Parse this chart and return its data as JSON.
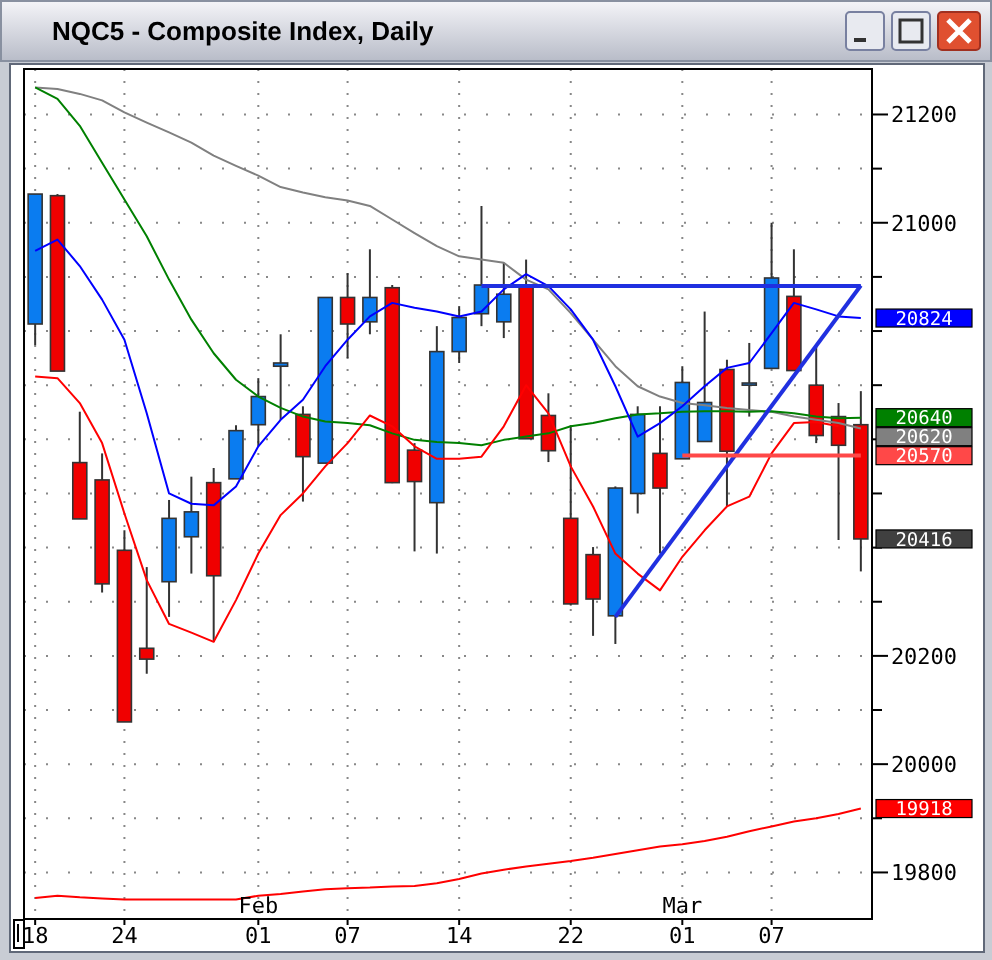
{
  "chart_data": {
    "type": "candlestick",
    "title": "NQC5 - Composite Index, Daily",
    "categories": [
      "18",
      null,
      null,
      null,
      "24",
      null,
      null,
      null,
      null,
      null,
      "Feb\n01",
      null,
      null,
      null,
      "07",
      null,
      null,
      null,
      null,
      "14",
      null,
      null,
      null,
      null,
      "22",
      null,
      null,
      null,
      null,
      "Mar\n01",
      null,
      null,
      null,
      "07",
      null,
      null,
      null,
      null
    ],
    "ylim": [
      19714,
      21284
    ],
    "yticks": [
      19800,
      {
        "value": 19900,
        "label": null
      },
      20000,
      {
        "value": 20100,
        "label": null
      },
      20200,
      {
        "value": 20300,
        "label": null
      },
      {
        "value": 20400,
        "label": null
      },
      {
        "value": 20500,
        "label": null
      },
      {
        "value": 20600,
        "label": null
      },
      {
        "value": 20700,
        "label": null
      },
      {
        "value": 20800,
        "label": null
      },
      {
        "value": 20900,
        "label": null
      },
      21000,
      {
        "value": 21100,
        "label": null
      },
      21200
    ],
    "grid": true,
    "ohlc": [
      [
        20813,
        21053,
        20774,
        21053
      ],
      [
        21050,
        21053,
        20726,
        20726
      ],
      [
        20557,
        20651,
        20453,
        20453
      ],
      [
        20525,
        20574,
        20317,
        20333
      ],
      [
        20395,
        20432,
        20078,
        20078
      ],
      [
        20214,
        20364,
        20167,
        20194
      ],
      [
        20337,
        20488,
        20272,
        20454
      ],
      [
        20420,
        20531,
        20352,
        20466
      ],
      [
        20520,
        20547,
        20226,
        20348
      ],
      [
        20527,
        20626,
        20527,
        20616
      ],
      [
        20627,
        20713,
        20587,
        20679
      ],
      [
        20735,
        20794,
        20636,
        20741
      ],
      [
        20646,
        20661,
        20485,
        20568
      ],
      [
        20556,
        20862,
        20556,
        20862
      ],
      [
        20862,
        20907,
        20750,
        20813
      ],
      [
        20817,
        20951,
        20794,
        20862
      ],
      [
        20880,
        20885,
        20519,
        20520
      ],
      [
        20580,
        20593,
        20393,
        20522
      ],
      [
        20483,
        20809,
        20389,
        20762
      ],
      [
        20762,
        20846,
        20741,
        20825
      ],
      [
        20832,
        21031,
        20809,
        20885
      ],
      [
        20817,
        20926,
        20787,
        20868
      ],
      [
        20883,
        20932,
        20601,
        20601
      ],
      [
        20644,
        20685,
        20558,
        20579
      ],
      [
        20454,
        20626,
        20293,
        20296
      ],
      [
        20387,
        20401,
        20237,
        20305
      ],
      [
        20274,
        20513,
        20222,
        20510
      ],
      [
        20500,
        20661,
        20463,
        20646
      ],
      [
        20574,
        20661,
        20389,
        20510
      ],
      [
        20564,
        20735,
        20564,
        20705
      ],
      [
        20596,
        20836,
        20596,
        20668
      ],
      [
        20729,
        20747,
        20476,
        20578
      ],
      [
        20700,
        20778,
        20642,
        20704
      ],
      [
        20731,
        21000,
        20731,
        20898
      ],
      [
        20864,
        20951,
        20727,
        20727
      ],
      [
        20700,
        20772,
        20593,
        20607
      ],
      [
        20642,
        20667,
        20414,
        20589
      ],
      [
        20627,
        20689,
        20356,
        20416
      ]
    ],
    "colors": [
      "#0a7cf0",
      "#f00000",
      "#f00000",
      "#f00000",
      "#f00000",
      "#f00000",
      "#0a7cf0",
      "#0a7cf0",
      "#f00000",
      "#0a7cf0",
      "#0a7cf0",
      "#0a7cf0",
      "#f00000",
      "#0a7cf0",
      "#f00000",
      "#0a7cf0",
      "#f00000",
      "#f00000",
      "#0a7cf0",
      "#0a7cf0",
      "#0a7cf0",
      "#0a7cf0",
      "#f00000",
      "#f00000",
      "#f00000",
      "#f00000",
      "#0a7cf0",
      "#0a7cf0",
      "#f00000",
      "#0a7cf0",
      "#0a7cf0",
      "#f00000",
      "#0a7cf0",
      "#0a7cf0",
      "#f00000",
      "#f00000",
      "#f00000",
      "#f00000"
    ],
    "color": "#404040",
    "value_labels": [
      null,
      null,
      null,
      null,
      null,
      null,
      null,
      null,
      null,
      null,
      null,
      null,
      null,
      null,
      null,
      null,
      null,
      null,
      null,
      null,
      null,
      null,
      null,
      null,
      null,
      null,
      null,
      null,
      null,
      null,
      null,
      null,
      null,
      null,
      null,
      null,
      null,
      "20416"
    ],
    "series": [
      {
        "type": "line",
        "color": "#808080",
        "values": [
          21250,
          21247,
          21238,
          21226,
          21204,
          21185,
          21167,
          21148,
          21124,
          21105,
          21087,
          21066,
          21056,
          21047,
          21041,
          21031,
          21006,
          20981,
          20957,
          20938,
          20932,
          20926,
          20895,
          20877,
          20833,
          20784,
          20735,
          20698,
          20679,
          20667,
          20663,
          20658,
          20654,
          20651,
          20642,
          20636,
          20630,
          20620
        ],
        "value_labels": [
          null,
          null,
          null,
          null,
          null,
          null,
          null,
          null,
          null,
          null,
          null,
          null,
          null,
          null,
          null,
          null,
          null,
          null,
          null,
          null,
          null,
          null,
          null,
          null,
          null,
          null,
          null,
          null,
          null,
          null,
          null,
          null,
          null,
          null,
          null,
          null,
          null,
          "20620"
        ]
      },
      {
        "type": "line",
        "color": "#008000",
        "values": [
          21250,
          21229,
          21179,
          21111,
          21043,
          20975,
          20895,
          20821,
          20759,
          20710,
          20679,
          20658,
          20642,
          20633,
          20630,
          20626,
          20611,
          20599,
          20595,
          20593,
          20589,
          20599,
          20605,
          20611,
          20624,
          20630,
          20639,
          20646,
          20648,
          20651,
          20652,
          20652,
          20651,
          20652,
          20648,
          20642,
          20639,
          20640
        ],
        "value_labels": [
          null,
          null,
          null,
          null,
          null,
          null,
          null,
          null,
          null,
          null,
          null,
          null,
          null,
          null,
          null,
          null,
          null,
          null,
          null,
          null,
          null,
          null,
          null,
          null,
          null,
          null,
          null,
          null,
          null,
          null,
          null,
          null,
          null,
          null,
          null,
          null,
          null,
          "20640"
        ]
      },
      {
        "type": "line",
        "color": "#0000ff",
        "values": [
          20948,
          20969,
          20920,
          20858,
          20784,
          20648,
          20500,
          20481,
          20478,
          20513,
          20587,
          20636,
          20673,
          20735,
          20784,
          20827,
          20852,
          20843,
          20836,
          20827,
          20836,
          20877,
          20905,
          20883,
          20840,
          20784,
          20698,
          20605,
          20630,
          20661,
          20698,
          20732,
          20741,
          20796,
          20852,
          20840,
          20827,
          20824
        ],
        "value_labels": [
          null,
          null,
          null,
          null,
          null,
          null,
          null,
          null,
          null,
          null,
          null,
          null,
          null,
          null,
          null,
          null,
          null,
          null,
          null,
          null,
          null,
          null,
          null,
          null,
          null,
          null,
          null,
          null,
          null,
          null,
          null,
          null,
          null,
          null,
          null,
          null,
          null,
          "20824"
        ]
      },
      {
        "type": "line",
        "color": "#ff0000",
        "values": [
          20716,
          20713,
          20667,
          20593,
          20463,
          20340,
          20259,
          20243,
          20226,
          20303,
          20389,
          20460,
          20500,
          20550,
          20593,
          20644,
          20624,
          20587,
          20564,
          20564,
          20568,
          20624,
          20700,
          20648,
          20550,
          20476,
          20389,
          20352,
          20321,
          20383,
          20432,
          20476,
          20494,
          20574,
          20630,
          20632,
          20624,
          null
        ]
      },
      {
        "type": "line",
        "color": "#ff0000",
        "values": [
          19753,
          19757,
          19754,
          19752,
          19750,
          19750,
          19750,
          19750,
          19750,
          19750,
          19757,
          19760,
          19765,
          19769,
          19771,
          19772,
          19774,
          19775,
          19780,
          19788,
          19798,
          19805,
          19811,
          19816,
          19821,
          19827,
          19834,
          19841,
          19848,
          19852,
          19858,
          19866,
          19876,
          19885,
          19894,
          19900,
          19908,
          19918
        ],
        "value_labels": [
          null,
          null,
          null,
          null,
          null,
          null,
          null,
          null,
          null,
          null,
          null,
          null,
          null,
          null,
          null,
          null,
          null,
          null,
          null,
          null,
          null,
          null,
          null,
          null,
          null,
          null,
          null,
          null,
          null,
          null,
          null,
          null,
          null,
          null,
          null,
          null,
          null,
          "19918"
        ]
      },
      {
        "type": "line",
        "color": "#2030e0",
        "values": [
          null,
          null,
          null,
          null,
          null,
          null,
          null,
          null,
          null,
          null,
          null,
          null,
          null,
          null,
          null,
          null,
          null,
          null,
          null,
          null,
          20883,
          null,
          null,
          null,
          null,
          null,
          null,
          null,
          null,
          null,
          null,
          null,
          null,
          null,
          null,
          null,
          null,
          20883
        ]
      },
      {
        "type": "line",
        "color": "#2030e0",
        "values": [
          null,
          null,
          null,
          null,
          null,
          null,
          null,
          null,
          null,
          null,
          null,
          null,
          null,
          null,
          null,
          null,
          null,
          null,
          null,
          null,
          null,
          null,
          null,
          null,
          null,
          null,
          20272,
          null,
          null,
          null,
          null,
          null,
          null,
          null,
          null,
          null,
          null,
          20884
        ]
      },
      {
        "type": "line",
        "color": "#ff4848",
        "values": [
          null,
          null,
          null,
          null,
          null,
          null,
          null,
          null,
          null,
          null,
          null,
          null,
          null,
          null,
          null,
          null,
          null,
          null,
          null,
          null,
          null,
          null,
          null,
          null,
          null,
          null,
          null,
          null,
          null,
          20570,
          null,
          null,
          null,
          null,
          null,
          null,
          null,
          20570
        ],
        "value_labels": [
          null,
          null,
          null,
          null,
          null,
          null,
          null,
          null,
          null,
          null,
          null,
          null,
          null,
          null,
          null,
          null,
          null,
          null,
          null,
          null,
          null,
          null,
          null,
          null,
          null,
          null,
          null,
          null,
          null,
          null,
          null,
          null,
          null,
          null,
          null,
          null,
          null,
          "20570"
        ]
      }
    ]
  }
}
